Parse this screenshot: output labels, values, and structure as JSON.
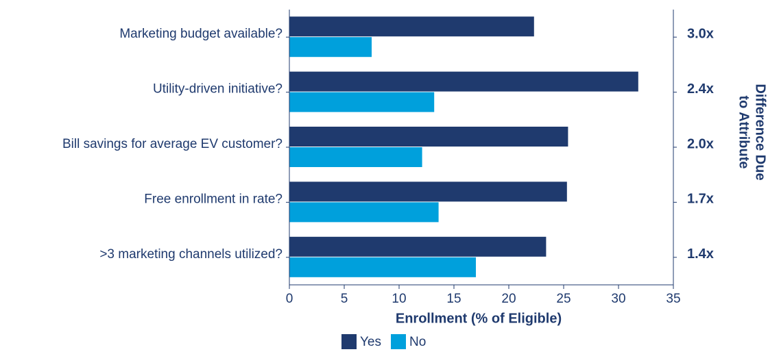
{
  "chart_data": {
    "type": "hbar",
    "categories": [
      "Marketing budget available?",
      "Utility-driven initiative?",
      "Bill savings for average EV customer?",
      "Free enrollment in rate?",
      ">3 marketing channels utilized?"
    ],
    "series": [
      {
        "name": "Yes",
        "color": "#1f3a6e",
        "values": [
          22.3,
          31.8,
          25.4,
          25.3,
          23.4
        ]
      },
      {
        "name": "No",
        "color": "#00a0dc",
        "values": [
          7.5,
          13.2,
          12.1,
          13.6,
          17.0
        ]
      }
    ],
    "right_labels": [
      "3.0x",
      "2.4x",
      "2.0x",
      "1.7x",
      "1.4x"
    ],
    "right_axis_label": [
      "Difference Due",
      "to Attribute"
    ],
    "xlabel": "Enrollment (% of Eligible)",
    "xlim": [
      0,
      35
    ],
    "xticks": [
      0,
      5,
      10,
      15,
      20,
      25,
      30,
      35
    ],
    "legend": "bottom"
  }
}
